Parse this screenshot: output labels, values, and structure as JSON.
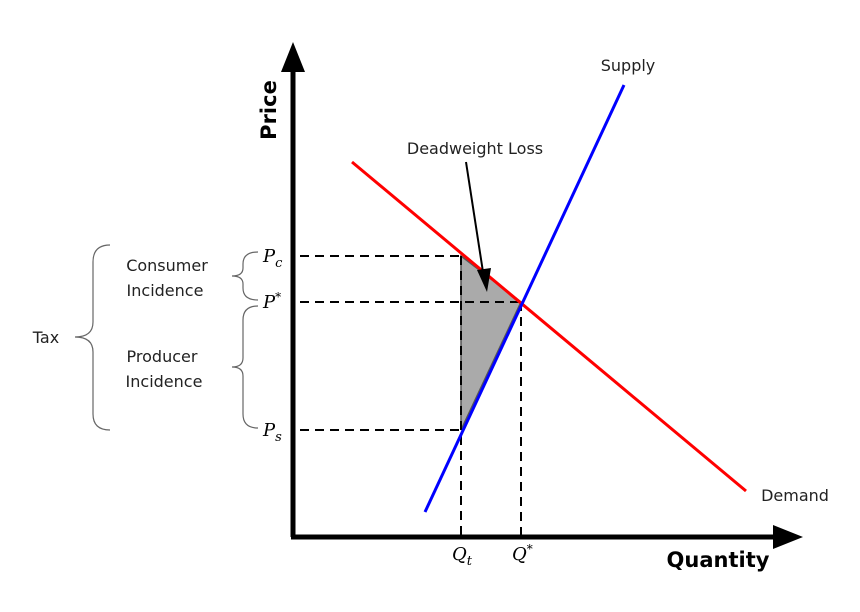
{
  "axes": {
    "y_label": "Price",
    "x_label": "Quantity"
  },
  "curves": {
    "supply": "Supply",
    "demand": "Demand"
  },
  "annotation": "Deadweight Loss",
  "prices": [
    {
      "base": "P",
      "sub": "c"
    },
    {
      "base": "P",
      "sup": "*"
    },
    {
      "base": "P",
      "sub": "s"
    }
  ],
  "quantities": [
    {
      "base": "Q",
      "sub": "t"
    },
    {
      "base": "Q",
      "sup": "*"
    }
  ],
  "braces": {
    "tax": "Tax",
    "consumer": [
      "Consumer",
      "Incidence"
    ],
    "producer": [
      "Producer",
      "Incidence"
    ]
  }
}
